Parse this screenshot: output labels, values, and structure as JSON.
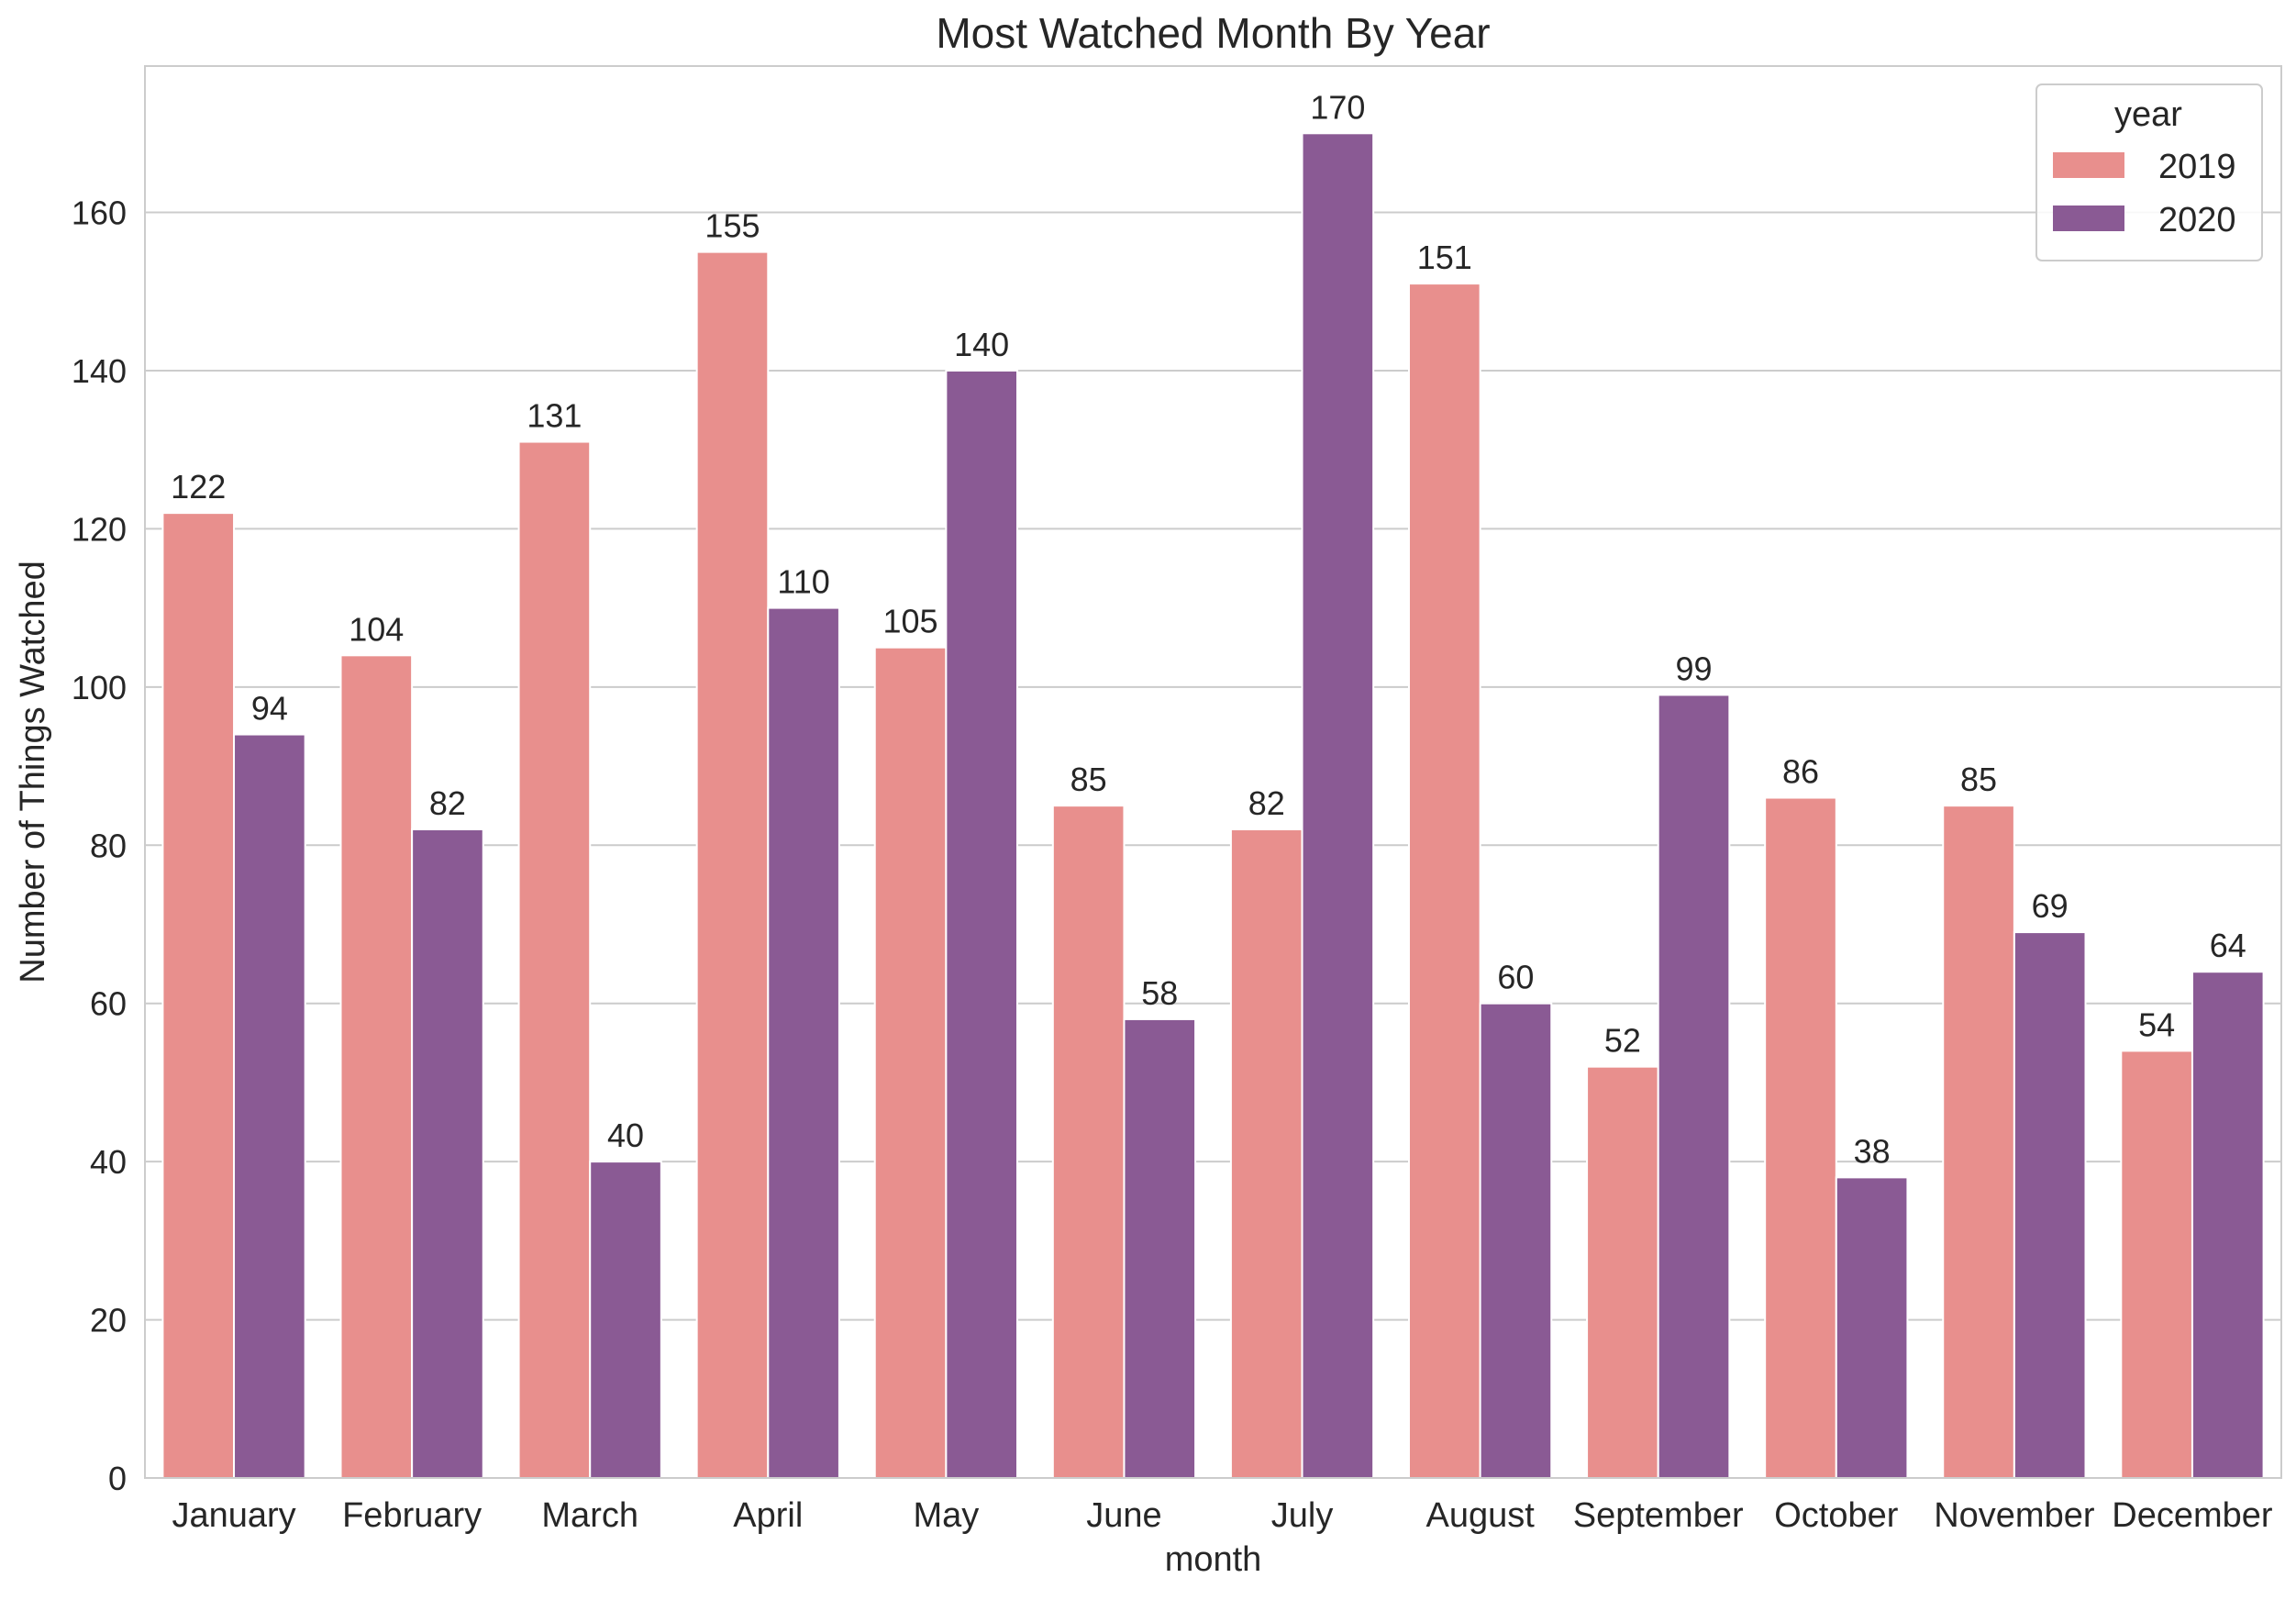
{
  "chart_data": {
    "type": "bar",
    "title": "Most Watched Month By Year",
    "xlabel": "month",
    "ylabel": "Number of Things Watched",
    "categories": [
      "January",
      "February",
      "March",
      "April",
      "May",
      "June",
      "July",
      "August",
      "September",
      "October",
      "November",
      "December"
    ],
    "series": [
      {
        "name": "2019",
        "color": "#e88f8d",
        "values": [
          122,
          104,
          131,
          155,
          105,
          85,
          82,
          151,
          52,
          86,
          85,
          54
        ]
      },
      {
        "name": "2020",
        "color": "#8a5a94",
        "values": [
          94,
          82,
          40,
          110,
          140,
          58,
          170,
          60,
          99,
          38,
          69,
          64
        ]
      }
    ],
    "ylim": [
      0,
      178.5
    ],
    "yticks": [
      0,
      20,
      40,
      60,
      80,
      100,
      120,
      140,
      160
    ],
    "grid": true,
    "legend": {
      "title": "year",
      "position": "top-right"
    }
  }
}
